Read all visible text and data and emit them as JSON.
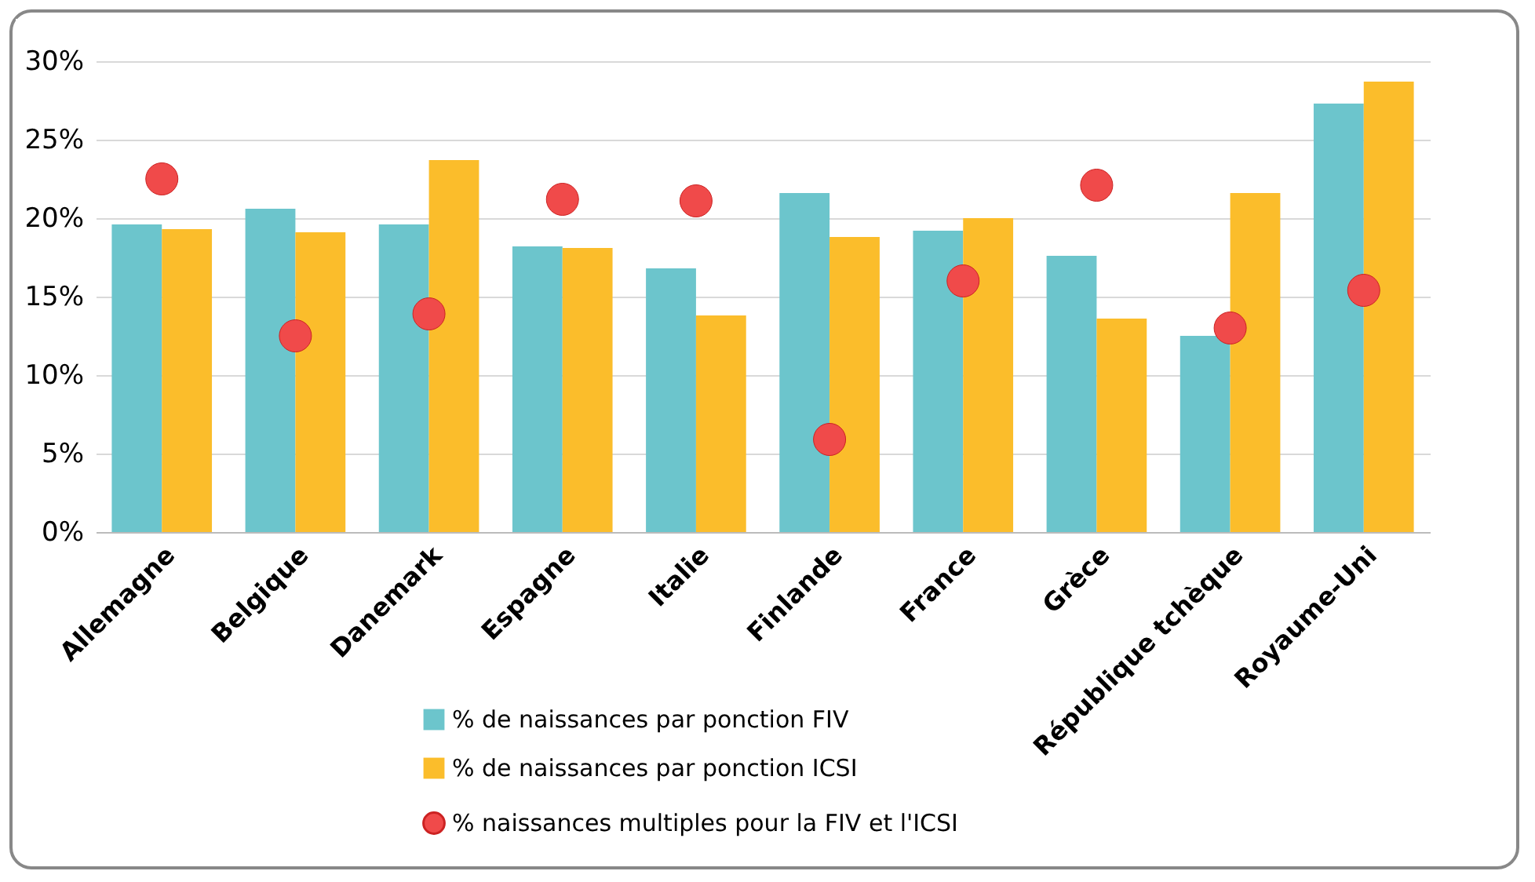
{
  "chart_data": {
    "type": "bar",
    "categories": [
      "Allemagne",
      "Belgique",
      "Danemark",
      "Espagne",
      "Italie",
      "Finlande",
      "France",
      "Grèce",
      "République tchèque",
      "Royaume-Uni"
    ],
    "series": [
      {
        "name": "% de naissances par ponction FIV",
        "type": "bar",
        "color": "#6cc5cc",
        "values": [
          19.6,
          20.6,
          19.6,
          18.2,
          16.8,
          21.6,
          19.2,
          17.6,
          12.5,
          27.3
        ]
      },
      {
        "name": "% de naissances par ponction ICSI",
        "type": "bar",
        "color": "#fbbd2b",
        "values": [
          19.3,
          19.1,
          23.7,
          18.1,
          13.8,
          18.8,
          20.0,
          13.6,
          21.6,
          28.7
        ]
      },
      {
        "name": "% naissances multiples pour la FIV et l'ICSI",
        "type": "scatter",
        "color": "#f04a4a",
        "values": [
          22.5,
          12.5,
          13.9,
          21.2,
          21.1,
          5.9,
          16.0,
          22.1,
          13.0,
          15.4
        ]
      }
    ],
    "ylim": [
      0,
      30
    ],
    "yticks": [
      {
        "value": 0,
        "label": "0%"
      },
      {
        "value": 5,
        "label": "5%"
      },
      {
        "value": 10,
        "label": "10%"
      },
      {
        "value": 15,
        "label": "15%"
      },
      {
        "value": 20,
        "label": "20%"
      },
      {
        "value": 25,
        "label": "25%"
      },
      {
        "value": 30,
        "label": "30%"
      }
    ],
    "grid": "y",
    "legend": "bottom",
    "marker": "circle"
  }
}
